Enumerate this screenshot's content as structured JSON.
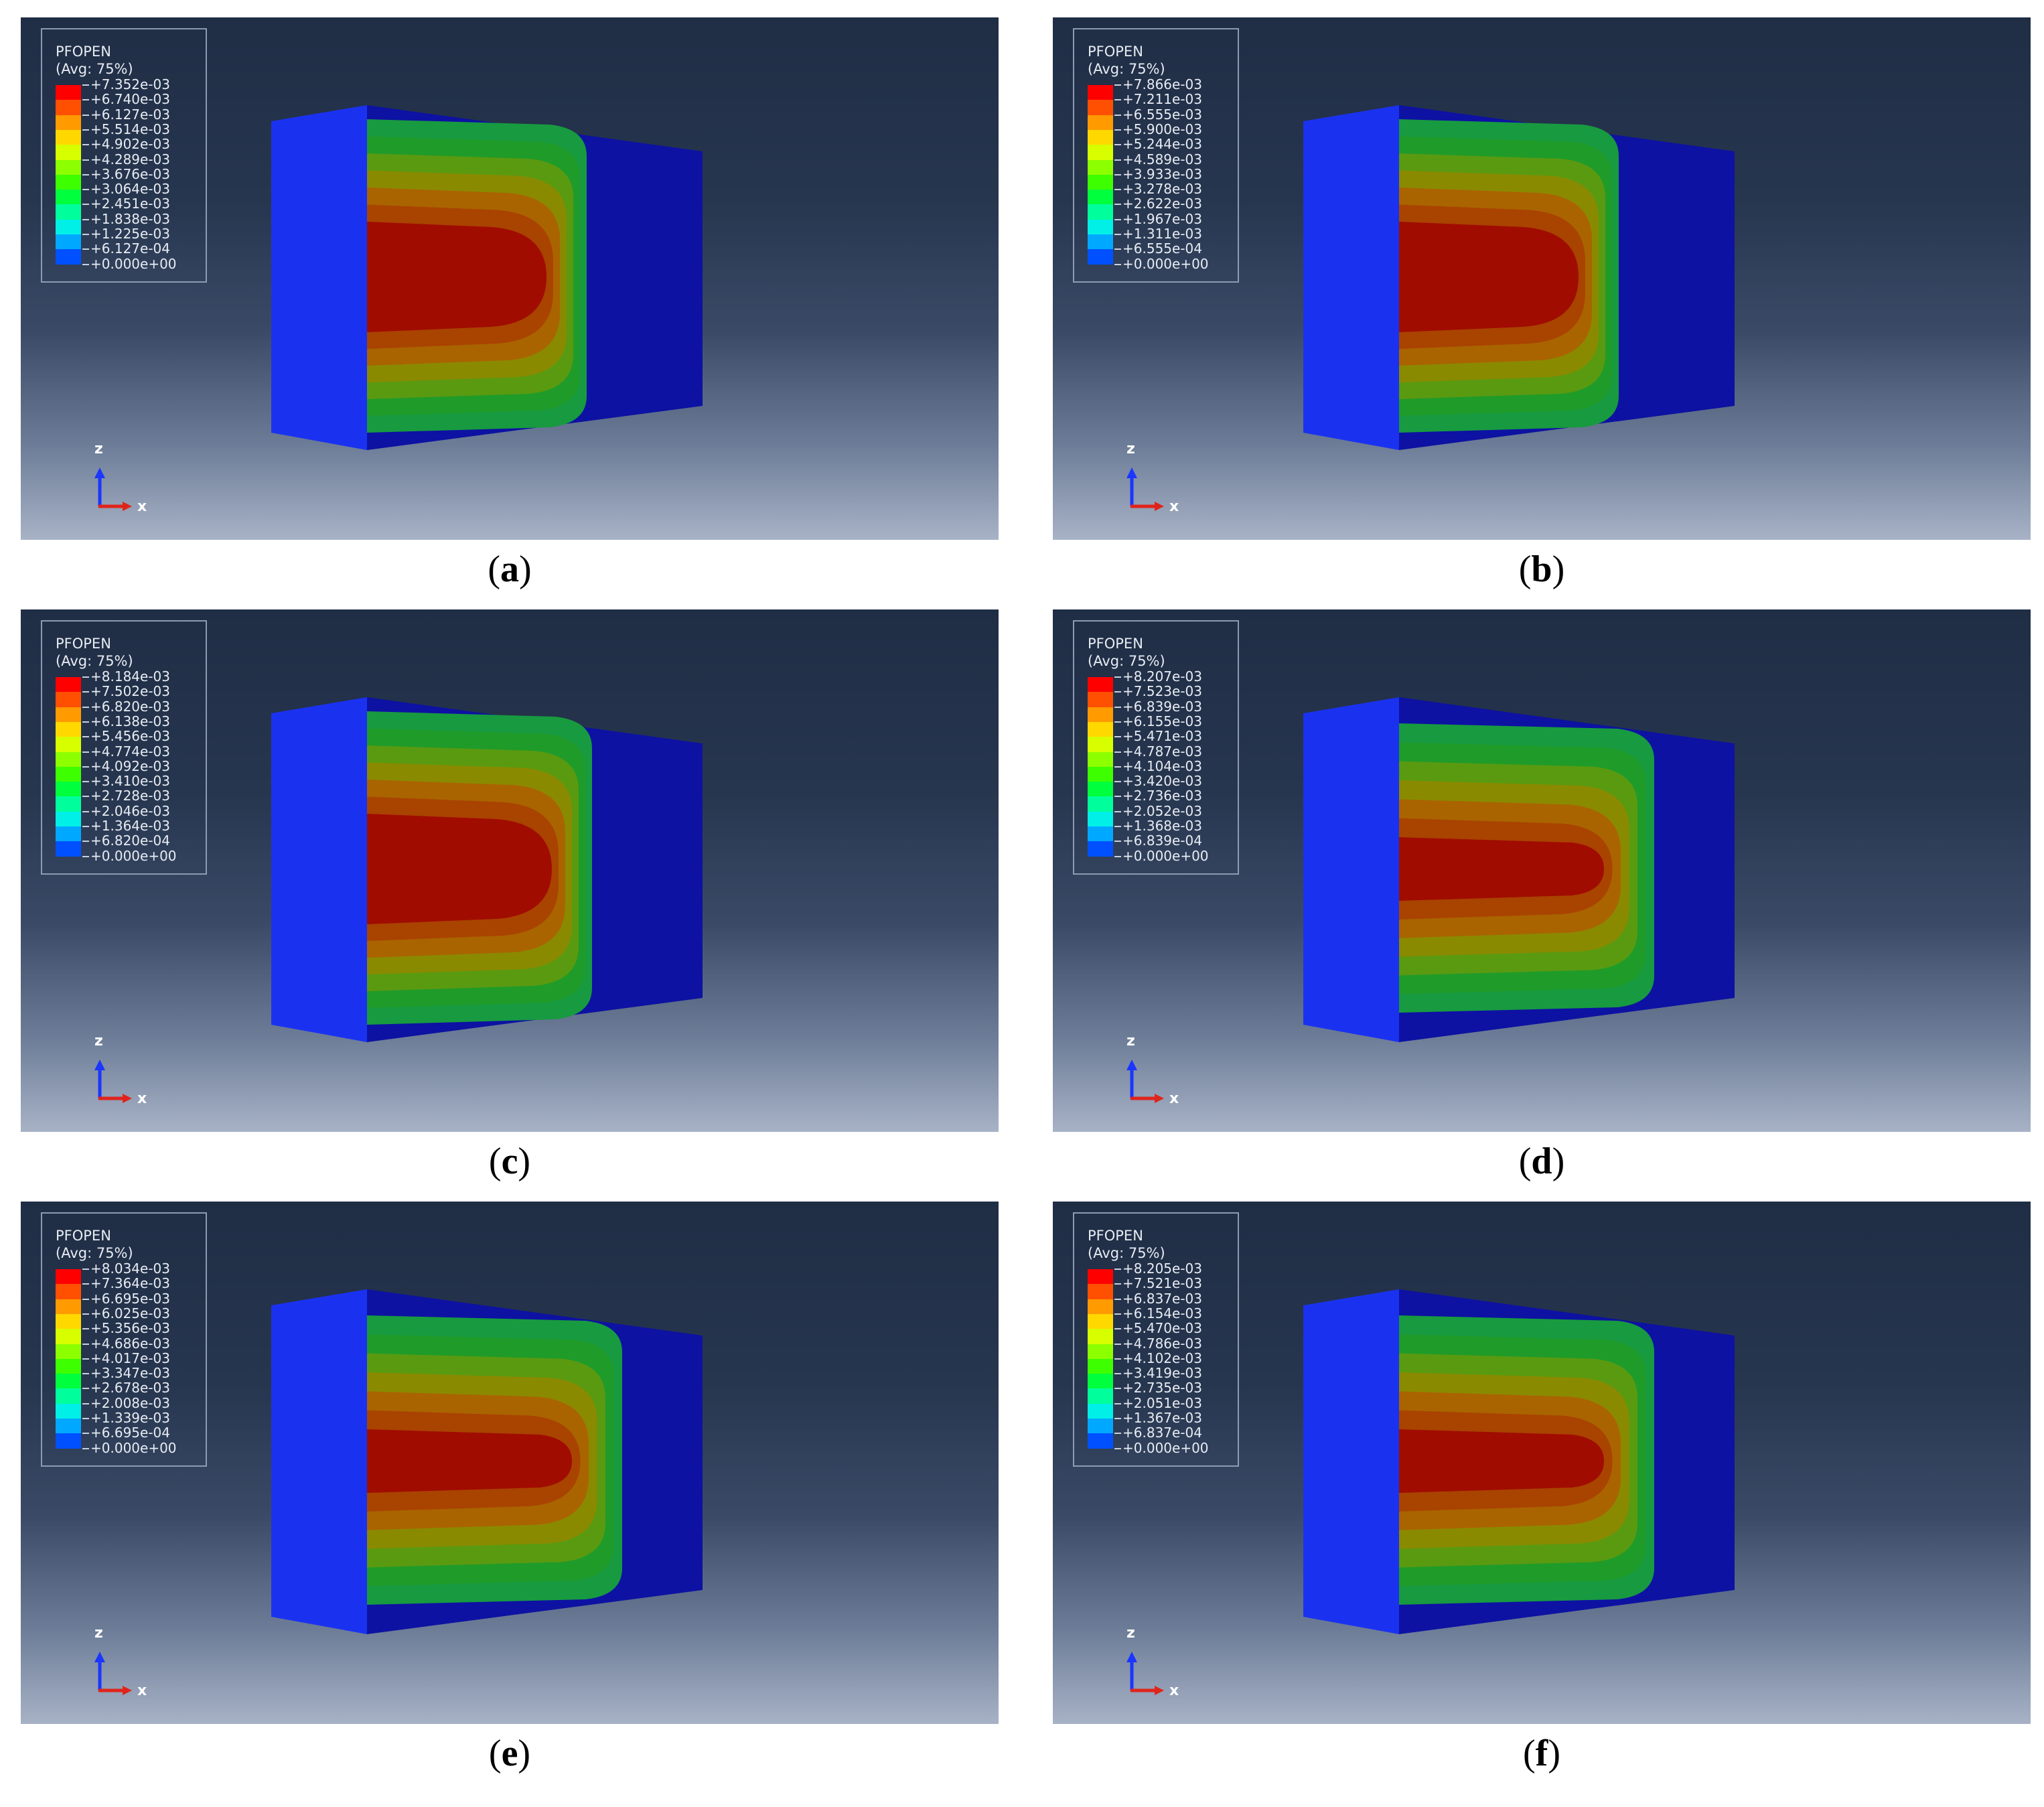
{
  "panels": [
    {
      "label": "a",
      "legend": {
        "variable": "PFOPEN",
        "averaging": "(Avg: 75%)",
        "values": [
          "+7.352e-03",
          "+6.740e-03",
          "+6.127e-03",
          "+5.514e-03",
          "+4.902e-03",
          "+4.289e-03",
          "+3.676e-03",
          "+3.064e-03",
          "+2.451e-03",
          "+1.838e-03",
          "+1.225e-03",
          "+6.127e-04",
          "+0.000e+00"
        ]
      },
      "axes": {
        "vertical": "z",
        "horizontal": "x"
      },
      "contour_extent": 0.0
    },
    {
      "label": "b",
      "legend": {
        "variable": "PFOPEN",
        "averaging": "(Avg: 75%)",
        "values": [
          "+7.866e-03",
          "+7.211e-03",
          "+6.555e-03",
          "+5.900e-03",
          "+5.244e-03",
          "+4.589e-03",
          "+3.933e-03",
          "+3.278e-03",
          "+2.622e-03",
          "+1.967e-03",
          "+1.311e-03",
          "+6.555e-04",
          "+0.000e+00"
        ]
      },
      "axes": {
        "vertical": "z",
        "horizontal": "x"
      },
      "contour_extent": 0.0
    },
    {
      "label": "c",
      "legend": {
        "variable": "PFOPEN",
        "averaging": "(Avg: 75%)",
        "values": [
          "+8.184e-03",
          "+7.502e-03",
          "+6.820e-03",
          "+6.138e-03",
          "+5.456e-03",
          "+4.774e-03",
          "+4.092e-03",
          "+3.410e-03",
          "+2.728e-03",
          "+2.046e-03",
          "+1.364e-03",
          "+6.820e-04",
          "+0.000e+00"
        ]
      },
      "axes": {
        "vertical": "z",
        "horizontal": "x"
      },
      "contour_extent": 0.03
    },
    {
      "label": "d",
      "legend": {
        "variable": "PFOPEN",
        "averaging": "(Avg: 75%)",
        "values": [
          "+8.207e-03",
          "+7.523e-03",
          "+6.839e-03",
          "+6.155e-03",
          "+5.471e-03",
          "+4.787e-03",
          "+4.104e-03",
          "+3.420e-03",
          "+2.736e-03",
          "+2.052e-03",
          "+1.368e-03",
          "+6.839e-04",
          "+0.000e+00"
        ]
      },
      "axes": {
        "vertical": "z",
        "horizontal": "x"
      },
      "contour_extent": 0.2
    },
    {
      "label": "e",
      "legend": {
        "variable": "PFOPEN",
        "averaging": "(Avg: 75%)",
        "values": [
          "+8.034e-03",
          "+7.364e-03",
          "+6.695e-03",
          "+6.025e-03",
          "+5.356e-03",
          "+4.686e-03",
          "+4.017e-03",
          "+3.347e-03",
          "+2.678e-03",
          "+2.008e-03",
          "+1.339e-03",
          "+6.695e-04",
          "+0.000e+00"
        ]
      },
      "axes": {
        "vertical": "z",
        "horizontal": "x"
      },
      "contour_extent": 0.2
    },
    {
      "label": "f",
      "legend": {
        "variable": "PFOPEN",
        "averaging": "(Avg: 75%)",
        "values": [
          "+8.205e-03",
          "+7.521e-03",
          "+6.837e-03",
          "+6.154e-03",
          "+5.470e-03",
          "+4.786e-03",
          "+4.102e-03",
          "+3.419e-03",
          "+2.735e-03",
          "+2.051e-03",
          "+1.367e-03",
          "+6.837e-04",
          "+0.000e+00"
        ]
      },
      "axes": {
        "vertical": "z",
        "horizontal": "x"
      },
      "contour_extent": 0.2
    }
  ],
  "colormap": [
    "#ff0000",
    "#ff4f00",
    "#ff9a00",
    "#ffd800",
    "#d7ff00",
    "#8cff00",
    "#3dff00",
    "#00ff3c",
    "#00ff9c",
    "#00f0e8",
    "#00a8ff",
    "#0050ff",
    "#0000ff"
  ],
  "colors": {
    "front_face": "#1a32f0",
    "side_face": "#0d12a2",
    "contour_bands": [
      "#189a40",
      "#1f9b2a",
      "#5a9a10",
      "#8a8a00",
      "#a96400",
      "#a94300",
      "#a00c00"
    ]
  }
}
